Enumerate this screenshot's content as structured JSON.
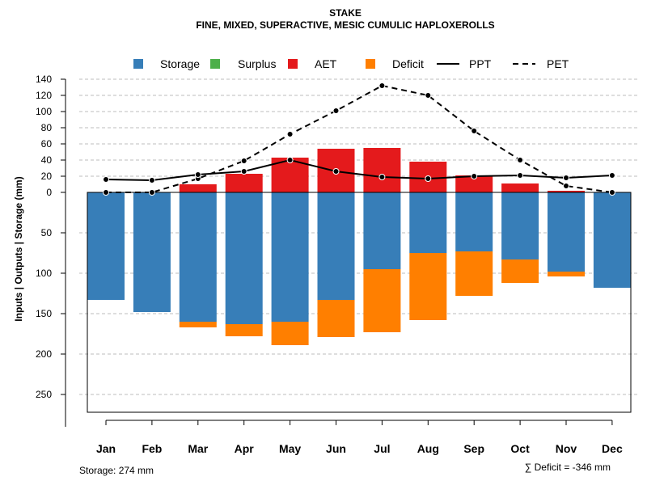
{
  "chart_data": {
    "type": "bar",
    "title": "STAKE",
    "subtitle": "FINE, MIXED, SUPERACTIVE, MESIC CUMULIC HAPLOXEROLLS",
    "ylabel": "Inputs | Outputs | Storage     (mm)",
    "categories": [
      "Jan",
      "Feb",
      "Mar",
      "Apr",
      "May",
      "Jun",
      "Jul",
      "Aug",
      "Sep",
      "Oct",
      "Nov",
      "Dec"
    ],
    "upper_ticks": [
      "0",
      "20",
      "40",
      "60",
      "80",
      "100",
      "120",
      "140"
    ],
    "upper_tick_values": [
      0,
      20,
      40,
      60,
      80,
      100,
      120,
      140
    ],
    "lower_ticks": [
      "50",
      "100",
      "150",
      "200",
      "250"
    ],
    "lower_tick_values": [
      50,
      100,
      150,
      200,
      250
    ],
    "ylim_upper": [
      0,
      140
    ],
    "ylim_lower": [
      0,
      274
    ],
    "legend": [
      {
        "label": "Storage",
        "kind": "box",
        "color": "#377EB8"
      },
      {
        "label": "Surplus",
        "kind": "box",
        "color": "#4DAF4A"
      },
      {
        "label": "AET",
        "kind": "box",
        "color": "#E41A1C"
      },
      {
        "label": "Deficit",
        "kind": "box",
        "color": "#FF7F00"
      },
      {
        "label": "PPT",
        "kind": "solid"
      },
      {
        "label": "PET",
        "kind": "dashed"
      }
    ],
    "series": [
      {
        "name": "Storage",
        "color": "#377EB8",
        "values": [
          133,
          148,
          160,
          163,
          160,
          133,
          95,
          75,
          73,
          83,
          98,
          118
        ]
      },
      {
        "name": "Deficit",
        "color": "#FF7F00",
        "values": [
          0,
          0,
          7,
          15,
          29,
          46,
          78,
          83,
          55,
          29,
          6,
          0
        ]
      },
      {
        "name": "AET",
        "color": "#E41A1C",
        "values": [
          0,
          0,
          10,
          23,
          43,
          54,
          55,
          38,
          21,
          11,
          2,
          0
        ]
      },
      {
        "name": "Surplus",
        "color": "#4DAF4A",
        "values": [
          0,
          0,
          0,
          0,
          0,
          0,
          0,
          0,
          0,
          0,
          0,
          0
        ]
      },
      {
        "name": "PPT",
        "values": [
          16,
          15,
          22,
          26,
          40,
          26,
          19,
          17,
          20,
          21,
          18,
          21
        ]
      },
      {
        "name": "PET",
        "values": [
          0,
          0,
          17,
          39,
          72,
          101,
          132,
          120,
          76,
          40,
          8,
          0
        ]
      }
    ]
  },
  "footer": {
    "storage": "Storage: 274 mm",
    "deficit": "∑ Deficit = -346 mm"
  }
}
